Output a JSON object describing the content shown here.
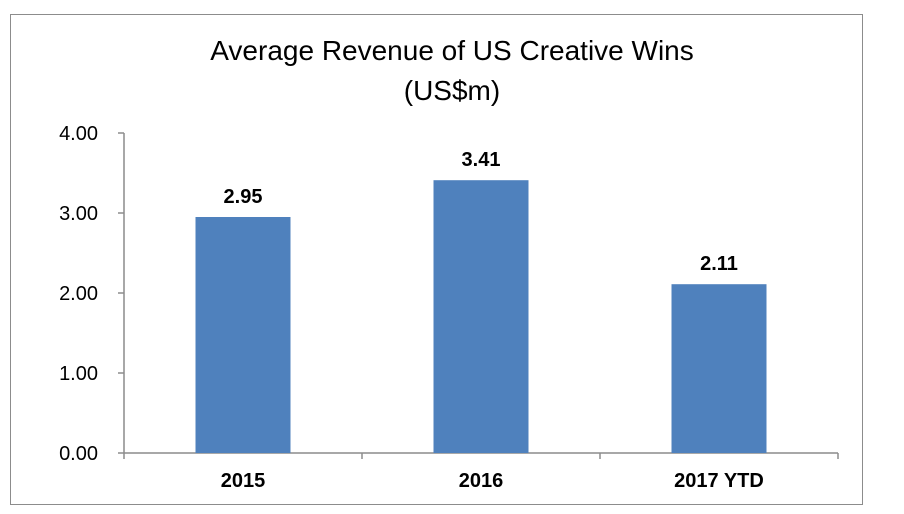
{
  "chart_data": {
    "type": "bar",
    "title": "Average Revenue of US Creative Wins",
    "subtitle": "(US$m)",
    "categories": [
      "2015",
      "2016",
      "2017 YTD"
    ],
    "values": [
      2.95,
      3.41,
      2.11
    ],
    "value_labels": [
      "2.95",
      "3.41",
      "2.11"
    ],
    "yticks": [
      "0.00",
      "1.00",
      "2.00",
      "3.00",
      "4.00"
    ],
    "ylim": [
      0,
      4
    ],
    "xlabel": "",
    "ylabel": "",
    "grid": false,
    "bar_color": "#4f81bd",
    "axis_color": "#8c8c8c"
  }
}
